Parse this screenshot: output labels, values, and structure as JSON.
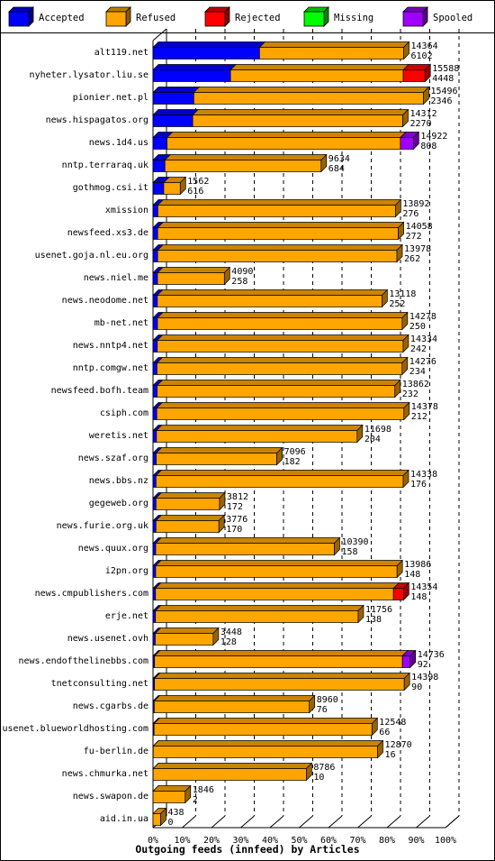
{
  "chart_data": {
    "type": "bar",
    "orientation": "horizontal",
    "stacked": true,
    "title": "Outgoing feeds (innfeed) by Articles",
    "xlim": [
      0,
      100
    ],
    "x_unit": "percent",
    "x_ticks": [
      "0%",
      "10%",
      "20%",
      "30%",
      "40%",
      "50%",
      "60%",
      "70%",
      "80%",
      "90%",
      "100%"
    ],
    "legend_position": "top",
    "series_order": [
      "Accepted",
      "Refused",
      "Rejected",
      "Missing",
      "Spooled"
    ],
    "series_colors": {
      "Accepted": "#0000ff",
      "Refused": "#ffa500",
      "Rejected": "#ff0000",
      "Missing": "#00ff00",
      "Spooled": "#a000ff"
    },
    "rows": [
      {
        "name": "alt119.net",
        "total": 14364,
        "accepted": 6102,
        "pct": {
          "Accepted": 42.5,
          "Refused": 57.5,
          "Rejected": 0,
          "Missing": 0,
          "Spooled": 0
        }
      },
      {
        "name": "nyheter.lysator.liu.se",
        "total": 15588,
        "accepted": 4448,
        "pct": {
          "Accepted": 28.5,
          "Refused": 63.5,
          "Rejected": 8.0,
          "Missing": 0,
          "Spooled": 0
        }
      },
      {
        "name": "pionier.net.pl",
        "total": 15496,
        "accepted": 2346,
        "pct": {
          "Accepted": 15.1,
          "Refused": 84.9,
          "Rejected": 0,
          "Missing": 0,
          "Spooled": 0
        }
      },
      {
        "name": "news.hispagatos.org",
        "total": 14312,
        "accepted": 2270,
        "pct": {
          "Accepted": 15.9,
          "Refused": 84.1,
          "Rejected": 0,
          "Missing": 0,
          "Spooled": 0
        }
      },
      {
        "name": "news.1d4.us",
        "total": 14922,
        "accepted": 808,
        "pct": {
          "Accepted": 5.4,
          "Refused": 89.6,
          "Rejected": 0,
          "Missing": 0,
          "Spooled": 5.0
        }
      },
      {
        "name": "nntp.terraraq.uk",
        "total": 9634,
        "accepted": 684,
        "pct": {
          "Accepted": 7.1,
          "Refused": 92.9,
          "Rejected": 0,
          "Missing": 0,
          "Spooled": 0
        }
      },
      {
        "name": "gothmog.csi.it",
        "total": 1562,
        "accepted": 616,
        "pct": {
          "Accepted": 39.4,
          "Refused": 60.6,
          "Rejected": 0,
          "Missing": 0,
          "Spooled": 0
        }
      },
      {
        "name": "xmission",
        "total": 13892,
        "accepted": 276,
        "pct": {
          "Accepted": 2.0,
          "Refused": 98.0,
          "Rejected": 0,
          "Missing": 0,
          "Spooled": 0
        }
      },
      {
        "name": "newsfeed.xs3.de",
        "total": 14058,
        "accepted": 272,
        "pct": {
          "Accepted": 1.9,
          "Refused": 98.1,
          "Rejected": 0,
          "Missing": 0,
          "Spooled": 0
        }
      },
      {
        "name": "usenet.goja.nl.eu.org",
        "total": 13978,
        "accepted": 262,
        "pct": {
          "Accepted": 1.9,
          "Refused": 98.1,
          "Rejected": 0,
          "Missing": 0,
          "Spooled": 0
        }
      },
      {
        "name": "news.niel.me",
        "total": 4090,
        "accepted": 258,
        "pct": {
          "Accepted": 6.3,
          "Refused": 93.7,
          "Rejected": 0,
          "Missing": 0,
          "Spooled": 0
        }
      },
      {
        "name": "news.neodome.net",
        "total": 13118,
        "accepted": 252,
        "pct": {
          "Accepted": 1.9,
          "Refused": 98.1,
          "Rejected": 0,
          "Missing": 0,
          "Spooled": 0
        }
      },
      {
        "name": "mb-net.net",
        "total": 14278,
        "accepted": 250,
        "pct": {
          "Accepted": 1.8,
          "Refused": 98.2,
          "Rejected": 0,
          "Missing": 0,
          "Spooled": 0
        }
      },
      {
        "name": "news.nntp4.net",
        "total": 14334,
        "accepted": 242,
        "pct": {
          "Accepted": 1.7,
          "Refused": 98.3,
          "Rejected": 0,
          "Missing": 0,
          "Spooled": 0
        }
      },
      {
        "name": "nntp.comgw.net",
        "total": 14276,
        "accepted": 234,
        "pct": {
          "Accepted": 1.6,
          "Refused": 98.4,
          "Rejected": 0,
          "Missing": 0,
          "Spooled": 0
        }
      },
      {
        "name": "newsfeed.bofh.team",
        "total": 13862,
        "accepted": 232,
        "pct": {
          "Accepted": 1.7,
          "Refused": 98.3,
          "Rejected": 0,
          "Missing": 0,
          "Spooled": 0
        }
      },
      {
        "name": "csiph.com",
        "total": 14378,
        "accepted": 212,
        "pct": {
          "Accepted": 1.5,
          "Refused": 98.5,
          "Rejected": 0,
          "Missing": 0,
          "Spooled": 0
        }
      },
      {
        "name": "weretis.net",
        "total": 11698,
        "accepted": 204,
        "pct": {
          "Accepted": 1.7,
          "Refused": 98.3,
          "Rejected": 0,
          "Missing": 0,
          "Spooled": 0
        }
      },
      {
        "name": "news.szaf.org",
        "total": 7096,
        "accepted": 182,
        "pct": {
          "Accepted": 2.6,
          "Refused": 97.4,
          "Rejected": 0,
          "Missing": 0,
          "Spooled": 0
        }
      },
      {
        "name": "news.bbs.nz",
        "total": 14338,
        "accepted": 176,
        "pct": {
          "Accepted": 1.2,
          "Refused": 98.8,
          "Rejected": 0,
          "Missing": 0,
          "Spooled": 0
        }
      },
      {
        "name": "gegeweb.org",
        "total": 3812,
        "accepted": 172,
        "pct": {
          "Accepted": 4.5,
          "Refused": 95.5,
          "Rejected": 0,
          "Missing": 0,
          "Spooled": 0
        }
      },
      {
        "name": "news.furie.org.uk",
        "total": 3776,
        "accepted": 170,
        "pct": {
          "Accepted": 4.5,
          "Refused": 95.5,
          "Rejected": 0,
          "Missing": 0,
          "Spooled": 0
        }
      },
      {
        "name": "news.quux.org",
        "total": 10390,
        "accepted": 158,
        "pct": {
          "Accepted": 1.5,
          "Refused": 98.5,
          "Rejected": 0,
          "Missing": 0,
          "Spooled": 0
        }
      },
      {
        "name": "i2pn.org",
        "total": 13986,
        "accepted": 148,
        "pct": {
          "Accepted": 1.1,
          "Refused": 98.9,
          "Rejected": 0,
          "Missing": 0,
          "Spooled": 0
        }
      },
      {
        "name": "news.cmpublishers.com",
        "total": 14354,
        "accepted": 148,
        "pct": {
          "Accepted": 1.0,
          "Refused": 95.0,
          "Rejected": 4.0,
          "Missing": 0,
          "Spooled": 0
        }
      },
      {
        "name": "erje.net",
        "total": 11756,
        "accepted": 138,
        "pct": {
          "Accepted": 1.2,
          "Refused": 98.8,
          "Rejected": 0,
          "Missing": 0,
          "Spooled": 0
        }
      },
      {
        "name": "news.usenet.ovh",
        "total": 3448,
        "accepted": 128,
        "pct": {
          "Accepted": 3.7,
          "Refused": 96.3,
          "Rejected": 0,
          "Missing": 0,
          "Spooled": 0
        }
      },
      {
        "name": "news.endofthelinebbs.com",
        "total": 14736,
        "accepted": 92,
        "pct": {
          "Accepted": 0.6,
          "Refused": 96.4,
          "Rejected": 0,
          "Missing": 0,
          "Spooled": 3.0
        }
      },
      {
        "name": "tnetconsulting.net",
        "total": 14398,
        "accepted": 90,
        "pct": {
          "Accepted": 0.6,
          "Refused": 99.4,
          "Rejected": 0,
          "Missing": 0,
          "Spooled": 0
        }
      },
      {
        "name": "news.cgarbs.de",
        "total": 8960,
        "accepted": 76,
        "pct": {
          "Accepted": 0.8,
          "Refused": 99.2,
          "Rejected": 0,
          "Missing": 0,
          "Spooled": 0
        }
      },
      {
        "name": "usenet.blueworldhosting.com",
        "total": 12548,
        "accepted": 66,
        "pct": {
          "Accepted": 0.5,
          "Refused": 99.5,
          "Rejected": 0,
          "Missing": 0,
          "Spooled": 0
        }
      },
      {
        "name": "fu-berlin.de",
        "total": 12870,
        "accepted": 16,
        "pct": {
          "Accepted": 0.1,
          "Refused": 99.9,
          "Rejected": 0,
          "Missing": 0,
          "Spooled": 0
        }
      },
      {
        "name": "news.chmurka.net",
        "total": 8786,
        "accepted": 10,
        "pct": {
          "Accepted": 0.1,
          "Refused": 99.9,
          "Rejected": 0,
          "Missing": 0,
          "Spooled": 0
        }
      },
      {
        "name": "news.swapon.de",
        "total": 1846,
        "accepted": 2,
        "pct": {
          "Accepted": 0.1,
          "Refused": 99.9,
          "Rejected": 0,
          "Missing": 0,
          "Spooled": 0
        }
      },
      {
        "name": "aid.in.ua",
        "total": 438,
        "accepted": 0,
        "pct": {
          "Accepted": 0,
          "Refused": 100,
          "Rejected": 0,
          "Missing": 0,
          "Spooled": 0
        }
      }
    ]
  }
}
